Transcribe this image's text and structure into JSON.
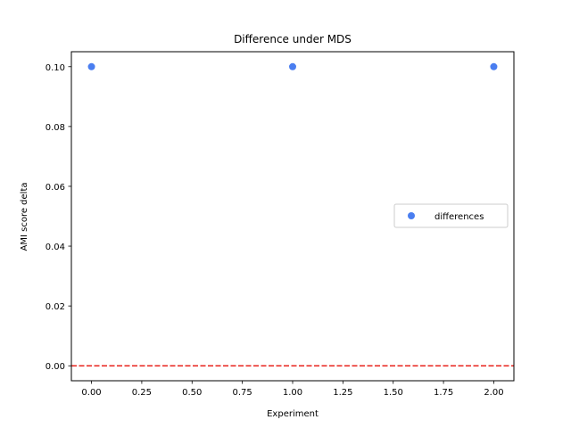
{
  "chart_data": {
    "type": "scatter",
    "title": "Difference under MDS",
    "xlabel": "Experiment",
    "ylabel": "AMI score delta",
    "xlim": [
      -0.1,
      2.1
    ],
    "ylim": [
      -0.005,
      0.105
    ],
    "xticks": [
      0.0,
      0.25,
      0.5,
      0.75,
      1.0,
      1.25,
      1.5,
      1.75,
      2.0
    ],
    "xtick_labels": [
      "0.00",
      "0.25",
      "0.50",
      "0.75",
      "1.00",
      "1.25",
      "1.50",
      "1.75",
      "2.00"
    ],
    "yticks": [
      0.0,
      0.02,
      0.04,
      0.06,
      0.08,
      0.1
    ],
    "ytick_labels": [
      "0.00",
      "0.02",
      "0.04",
      "0.06",
      "0.08",
      "0.10"
    ],
    "grid": false,
    "legend_position": "center-right",
    "series": [
      {
        "name": "differences",
        "color": "#4a7ef0",
        "points": [
          {
            "x": 0.0,
            "y": 0.1
          },
          {
            "x": 1.0,
            "y": 0.1
          },
          {
            "x": 2.0,
            "y": 0.1
          }
        ]
      }
    ],
    "reference_line": {
      "y": 0.0,
      "color": "#e8231c",
      "style": "dashed"
    }
  }
}
